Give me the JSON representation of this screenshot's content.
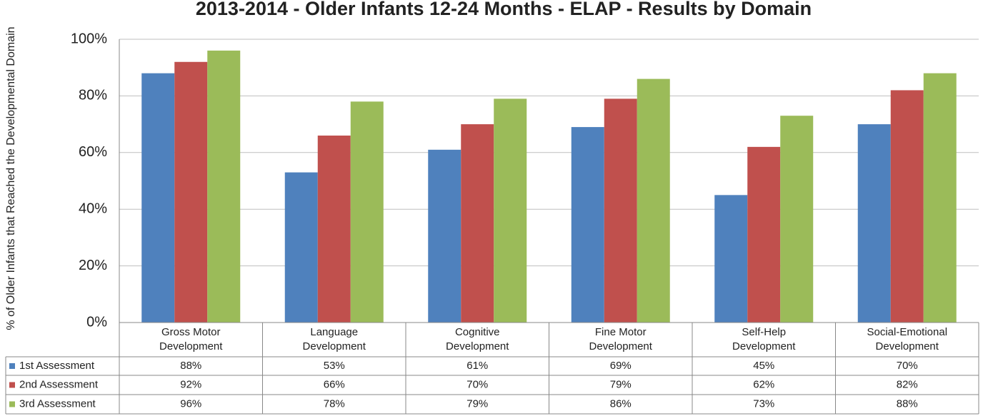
{
  "chart_data": {
    "type": "bar",
    "title": "2013-2014 - Older Infants 12-24 Months - ELAP - Results by Domain",
    "y_label": "% of Older Infants that Reached the Developmental Domain",
    "categories": [
      "Gross Motor Development",
      "Language Development",
      "Cognitive Development",
      "Fine Motor Development",
      "Self-Help Development",
      "Social-Emotional Development"
    ],
    "series": [
      {
        "name": "1st Assessment",
        "color": "#4f81bd",
        "values": [
          88,
          53,
          61,
          69,
          45,
          70
        ],
        "value_labels": [
          "88%",
          "53%",
          "61%",
          "69%",
          "45%",
          "70%"
        ]
      },
      {
        "name": "2nd Assessment",
        "color": "#c0504d",
        "values": [
          92,
          66,
          70,
          79,
          62,
          82
        ],
        "value_labels": [
          "92%",
          "66%",
          "70%",
          "79%",
          "62%",
          "82%"
        ]
      },
      {
        "name": "3rd Assessment",
        "color": "#9bbb59",
        "values": [
          96,
          78,
          79,
          86,
          73,
          88
        ],
        "value_labels": [
          "96%",
          "78%",
          "79%",
          "86%",
          "73%",
          "88%"
        ]
      }
    ],
    "ylim": [
      0,
      100
    ],
    "yticks": [
      {
        "value": 0,
        "label": "0%"
      },
      {
        "value": 20,
        "label": "20%"
      },
      {
        "value": 40,
        "label": "40%"
      },
      {
        "value": 60,
        "label": "60%"
      },
      {
        "value": 80,
        "label": "80%"
      },
      {
        "value": 100,
        "label": "100%"
      }
    ],
    "grid": true
  }
}
